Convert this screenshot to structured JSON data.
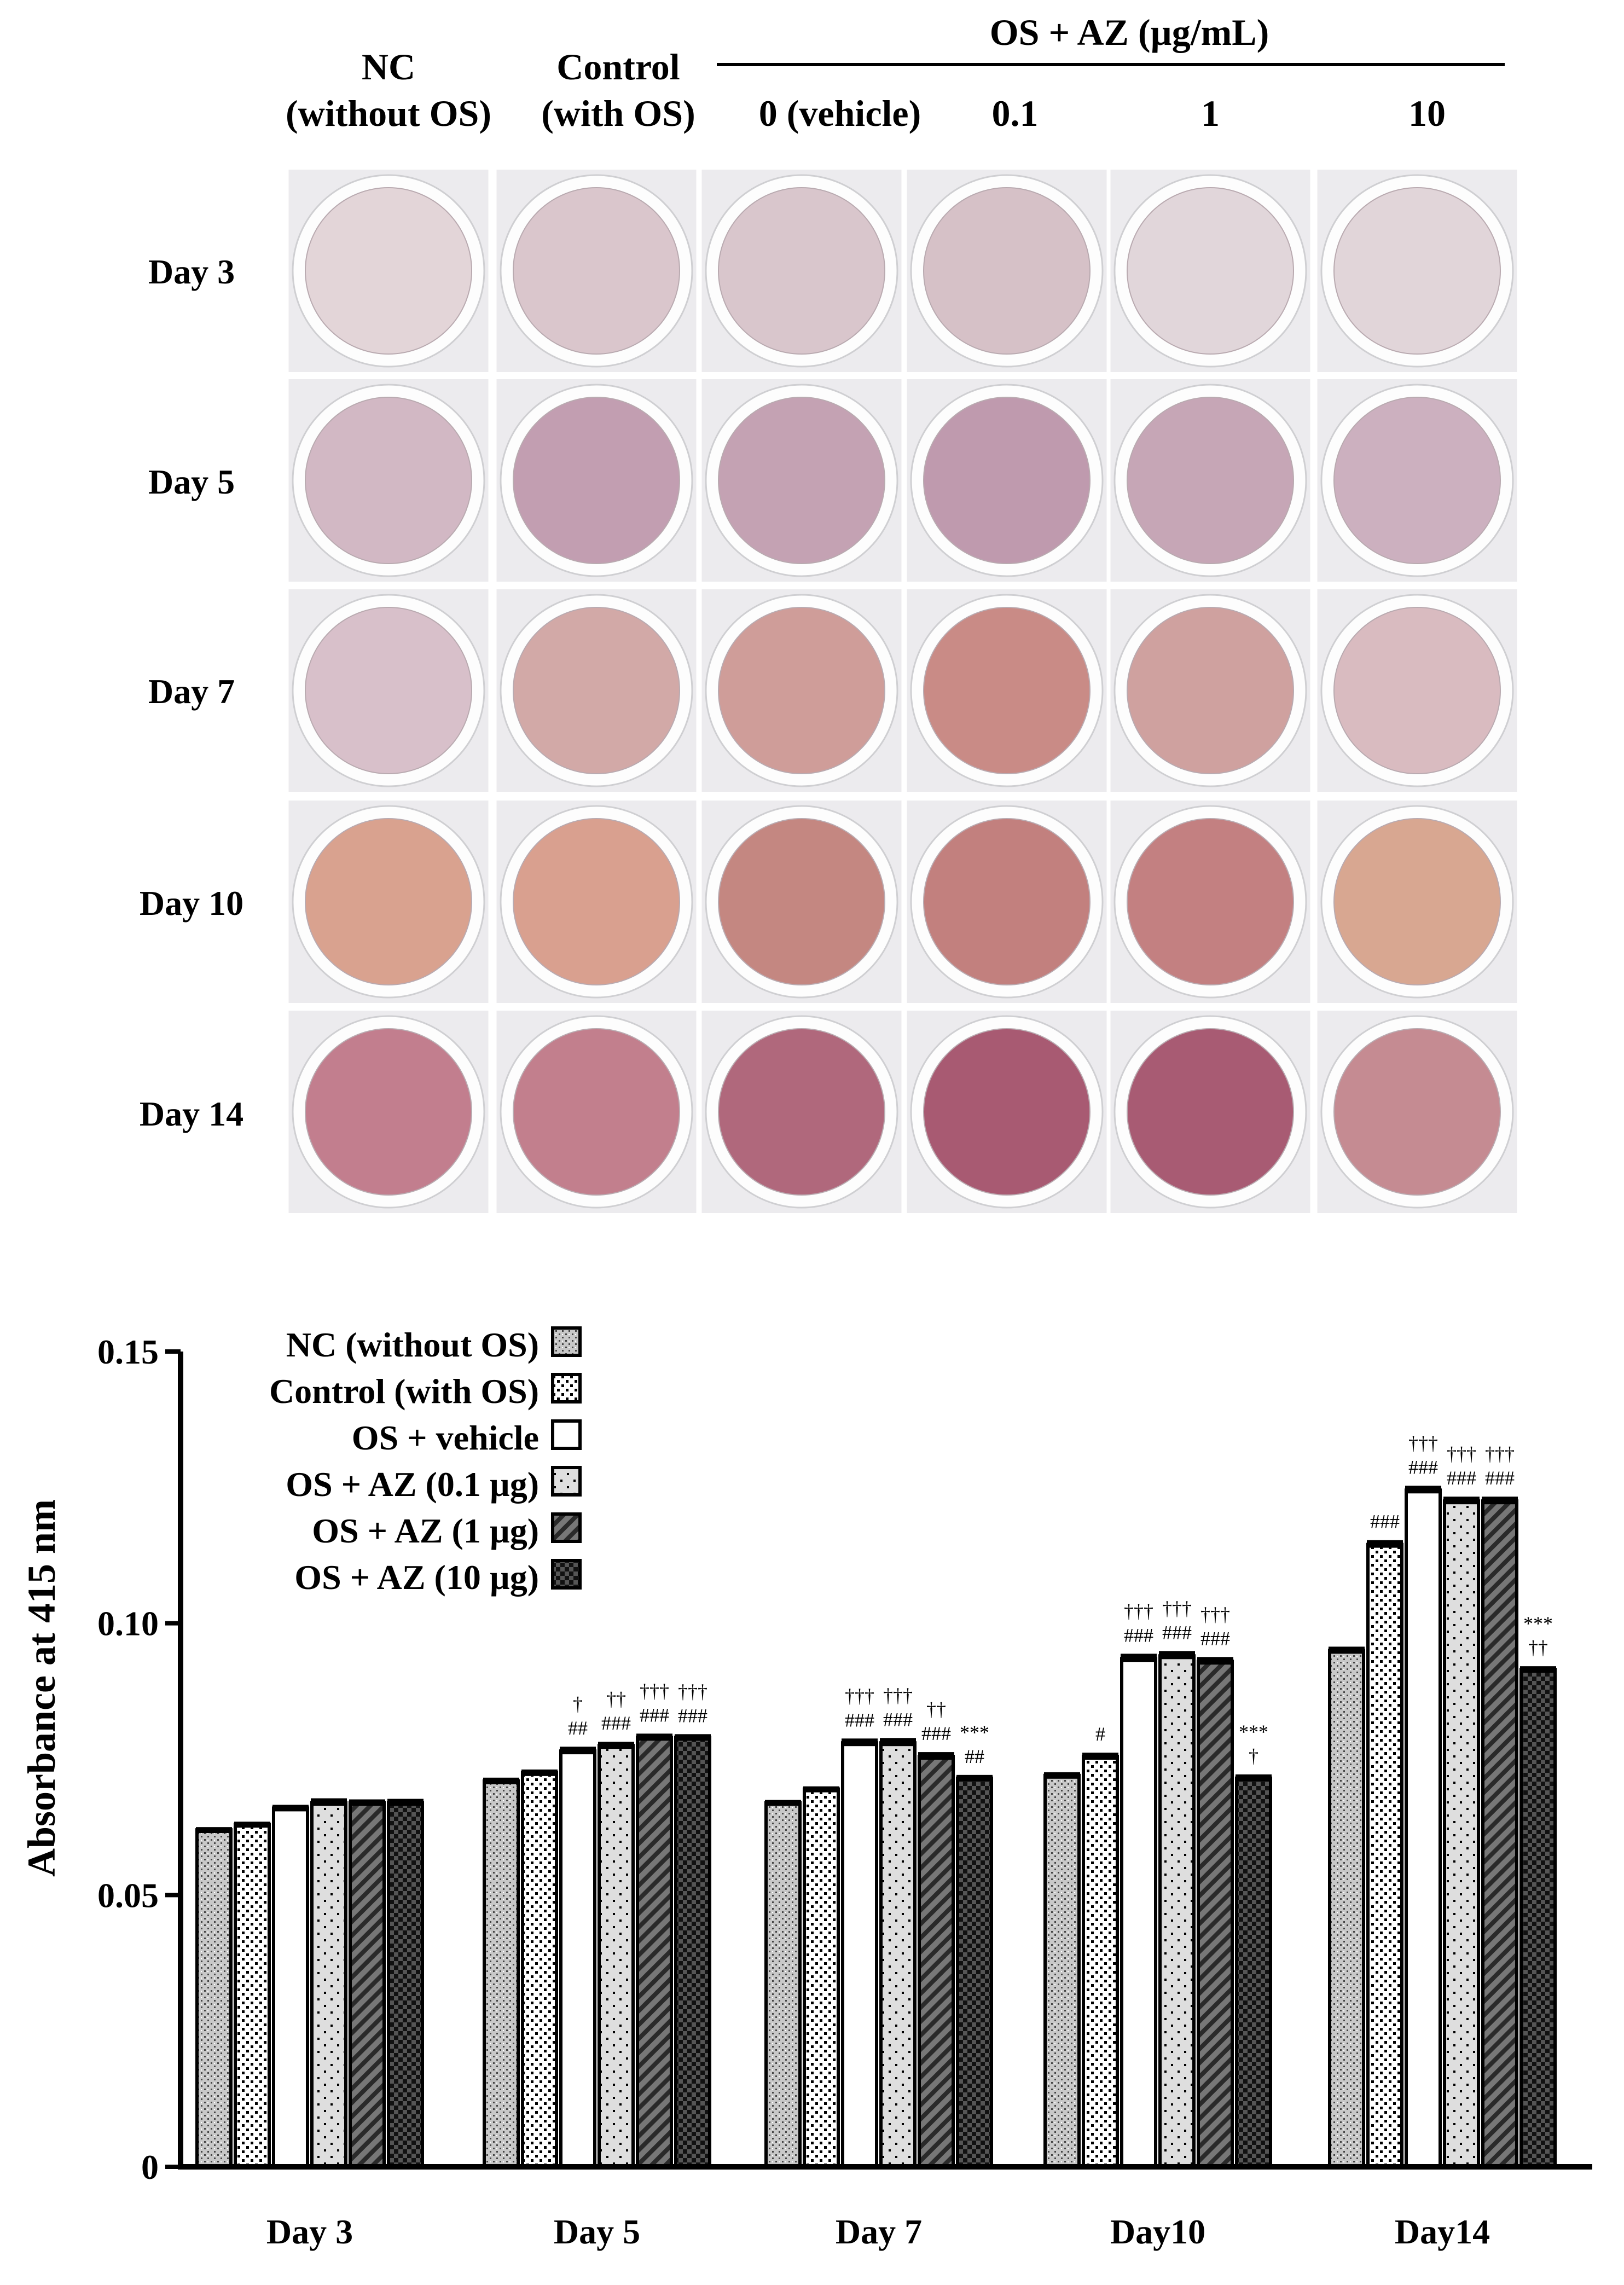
{
  "panel_a": {
    "header_group": "OS + AZ (µg/mL)",
    "column_headers": [
      {
        "line1": "NC",
        "line2": "(without OS)"
      },
      {
        "line1": "Control",
        "line2": "(with OS)"
      },
      {
        "line1": "",
        "line2": "0 (vehicle)"
      },
      {
        "line1": "",
        "line2": "0.1"
      },
      {
        "line1": "",
        "line2": "1"
      },
      {
        "line1": "",
        "line2": "10"
      }
    ],
    "row_labels": [
      "Day 3",
      "Day 5",
      "Day 7",
      "Day 10",
      "Day 14"
    ],
    "well_colors": [
      [
        "#e3d5d8",
        "#dac6cc",
        "#d9c6cc",
        "#d6c1c7",
        "#e1d6da",
        "#e1d5d9"
      ],
      [
        "#d2b8c4",
        "#c29eb1",
        "#c4a2b3",
        "#bf9aae",
        "#c6a6b6",
        "#ccb0bf"
      ],
      [
        "#d8c0ca",
        "#d2a9a7",
        "#cf9d99",
        "#c98b86",
        "#cfa19f",
        "#d9bbc0"
      ],
      [
        "#d9a28f",
        "#d9a08f",
        "#c48781",
        "#c2807e",
        "#c38081",
        "#d8a791"
      ],
      [
        "#c27e8e",
        "#c27f8d",
        "#b0687c",
        "#a85a72",
        "#a85b73",
        "#c58b92"
      ]
    ]
  },
  "chart_data": {
    "type": "bar",
    "title": "",
    "xlabel": "",
    "ylabel": "Absorbance at  415 nm",
    "ylim": [
      0,
      0.15
    ],
    "yticks": [
      "0",
      "0.05",
      "0.10",
      "0.15"
    ],
    "categories": [
      "Day 3",
      "Day 5",
      "Day 7",
      "Day10",
      "Day14"
    ],
    "series": [
      {
        "name": "NC (without OS)",
        "pattern": "stipple-gray",
        "values": [
          0.062,
          0.071,
          0.067,
          0.072,
          0.095
        ],
        "errors": [
          0.0005,
          0.0006,
          0.0005,
          0.0006,
          0.0007
        ]
      },
      {
        "name": "Control (with OS)",
        "pattern": "dots",
        "values": [
          0.063,
          0.0725,
          0.0695,
          0.0755,
          0.1145
        ],
        "errors": [
          0.0005,
          0.0006,
          0.0005,
          0.0007,
          0.0008
        ]
      },
      {
        "name": "OS + vehicle",
        "pattern": "white",
        "values": [
          0.066,
          0.0765,
          0.078,
          0.0935,
          0.1245
        ],
        "errors": [
          0.0006,
          0.0008,
          0.0008,
          0.0009,
          0.0008
        ]
      },
      {
        "name": "OS + AZ (0.1 µg)",
        "pattern": "light-dots",
        "values": [
          0.067,
          0.0775,
          0.078,
          0.094,
          0.1225
        ],
        "errors": [
          0.0008,
          0.0007,
          0.0009,
          0.0009,
          0.0008
        ]
      },
      {
        "name": "OS + AZ    (1 µg)",
        "pattern": "hatch",
        "values": [
          0.067,
          0.079,
          0.0755,
          0.093,
          0.1225
        ],
        "errors": [
          0.0006,
          0.0007,
          0.0008,
          0.0008,
          0.0008
        ]
      },
      {
        "name": "OS + AZ  (10 µg)",
        "pattern": "checker",
        "values": [
          0.067,
          0.079,
          0.0715,
          0.0715,
          0.0915
        ],
        "errors": [
          0.0007,
          0.0006,
          0.0006,
          0.0007,
          0.0006
        ]
      }
    ],
    "annotations": [
      [
        [],
        [],
        [],
        [],
        [],
        []
      ],
      [
        [],
        [],
        [
          "†",
          "##"
        ],
        [
          "††",
          "###"
        ],
        [
          "†††",
          "###"
        ],
        [
          "†††",
          "###"
        ]
      ],
      [
        [],
        [],
        [
          "†††",
          "###"
        ],
        [
          "†††",
          "###"
        ],
        [
          "††",
          "###"
        ],
        [
          "***",
          "##"
        ]
      ],
      [
        [],
        [
          "#"
        ],
        [
          "†††",
          "###"
        ],
        [
          "†††",
          "###"
        ],
        [
          "†††",
          "###"
        ],
        [
          "***",
          "†"
        ]
      ],
      [
        [],
        [
          "###"
        ],
        [
          "†††",
          "###"
        ],
        [
          "†††",
          "###"
        ],
        [
          "†††",
          "###"
        ],
        [
          "***",
          "††"
        ]
      ]
    ]
  }
}
